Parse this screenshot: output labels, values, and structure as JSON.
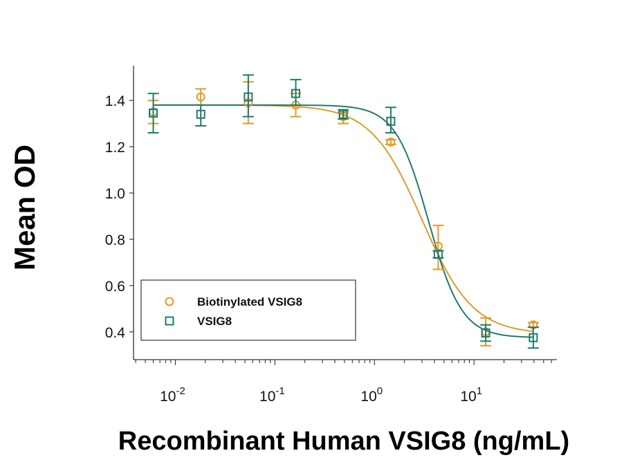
{
  "chart_data": {
    "type": "scatter",
    "xlabel": "Recombinant Human VSIG8 (ng/mL)",
    "ylabel": "Mean OD",
    "xscale": "log",
    "xlim": [
      0.0038,
      68
    ],
    "ylim": [
      0.28,
      1.55
    ],
    "xticks": [
      0.01,
      0.1,
      1,
      10
    ],
    "xtick_labels": [
      {
        "base": "10",
        "exp": "-2"
      },
      {
        "base": "10",
        "exp": "-1"
      },
      {
        "base": "10",
        "exp": "0"
      },
      {
        "base": "10",
        "exp": "1"
      }
    ],
    "yticks": [
      0.4,
      0.6,
      0.8,
      1.0,
      1.2,
      1.4
    ],
    "ytick_labels": [
      "0.4",
      "0.6",
      "0.8",
      "1.0",
      "1.2",
      "1.4"
    ],
    "grid": false,
    "legend_position": "bottom-left",
    "x": [
      0.006,
      0.018,
      0.054,
      0.162,
      0.486,
      1.46,
      4.37,
      13.1,
      39.4
    ],
    "series": [
      {
        "name": "Biotinylated VSIG8",
        "marker": "circle",
        "color": "#E39A26",
        "values": [
          1.35,
          1.415,
          1.39,
          1.38,
          1.33,
          1.22,
          0.77,
          0.4,
          0.43
        ],
        "error_low": [
          1.3,
          1.38,
          1.3,
          1.33,
          1.3,
          1.21,
          0.67,
          0.34,
          0.42
        ],
        "error_high": [
          1.4,
          1.45,
          1.48,
          1.43,
          1.35,
          1.23,
          0.86,
          0.46,
          0.44
        ],
        "fit": {
          "top": 1.38,
          "bottom": 0.39,
          "ec50": 3.0,
          "hill": 1.7
        }
      },
      {
        "name": "VSIG8",
        "marker": "square",
        "color": "#1F7A70",
        "values": [
          1.345,
          1.34,
          1.415,
          1.43,
          1.34,
          1.31,
          0.735,
          0.395,
          0.375
        ],
        "error_low": [
          1.26,
          1.29,
          1.33,
          1.38,
          1.32,
          1.26,
          0.72,
          0.36,
          0.33
        ],
        "error_high": [
          1.43,
          1.38,
          1.51,
          1.49,
          1.36,
          1.37,
          0.75,
          0.43,
          0.42
        ],
        "fit": {
          "top": 1.38,
          "bottom": 0.375,
          "ec50": 3.5,
          "hill": 2.6
        }
      }
    ]
  }
}
